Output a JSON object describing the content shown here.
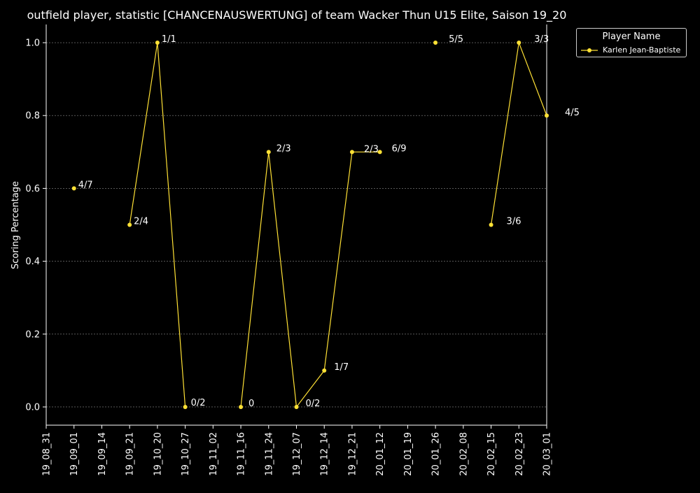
{
  "chart_data": {
    "type": "line",
    "title": "outfield player, statistic [CHANCENAUSWERTUNG] of team Wacker Thun U15 Elite, Saison 19_20",
    "xlabel": "",
    "ylabel": "Scoring Percentage",
    "categories": [
      "19_08_31",
      "19_09_01",
      "19_09_14",
      "19_09_21",
      "19_10_20",
      "19_10_27",
      "19_11_02",
      "19_11_16",
      "19_11_24",
      "19_12_07",
      "19_12_14",
      "19_12_21",
      "20_01_12",
      "20_01_19",
      "20_01_26",
      "20_02_08",
      "20_02_15",
      "20_02_23",
      "20_03_01"
    ],
    "yticks": [
      "0.0",
      "0.2",
      "0.4",
      "0.6",
      "0.8",
      "1.0"
    ],
    "ylim": [
      -0.05,
      1.05
    ],
    "grid": true,
    "legend": {
      "title": "Player Name",
      "placement": "top-right-outside"
    },
    "series": [
      {
        "name": "Karlen Jean-Baptiste",
        "color": "#ffe135",
        "values": [
          null,
          0.6,
          null,
          0.5,
          1.0,
          0.0,
          null,
          0.0,
          0.7,
          0.0,
          0.1,
          0.7,
          0.7,
          null,
          1.0,
          null,
          0.5,
          1.0,
          0.8
        ],
        "labels": [
          null,
          "4/7",
          null,
          "2/4",
          "1/1",
          "0/2",
          null,
          "0",
          "2/3",
          "0/2",
          "1/7",
          "2/3",
          "6/9",
          null,
          "5/5",
          null,
          "3/6",
          "3/3",
          "4/5"
        ]
      }
    ]
  }
}
